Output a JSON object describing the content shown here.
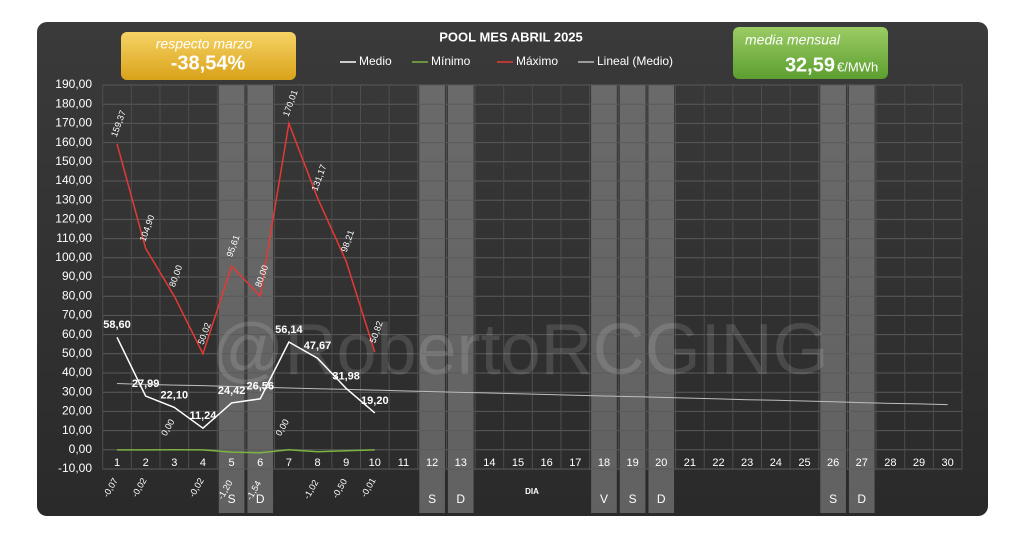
{
  "chart_data": {
    "type": "line",
    "title": "POOL  MES ABRIL 2025",
    "x_label": "DIA",
    "watermark": "@RobertoRCGING",
    "boxes": [
      {
        "title": "respecto marzo",
        "value": "-38,54%"
      },
      {
        "title": "media mensual",
        "value": "32,59",
        "unit": "€/MWh"
      }
    ],
    "categories": [
      "1",
      "2",
      "3",
      "4",
      "5",
      "6",
      "7",
      "8",
      "9",
      "10",
      "11",
      "12",
      "13",
      "14",
      "15",
      "16",
      "17",
      "18",
      "19",
      "20",
      "21",
      "22",
      "23",
      "24",
      "25",
      "26",
      "27",
      "28",
      "29",
      "30"
    ],
    "shaded_days": [
      {
        "category": "5",
        "label": "S"
      },
      {
        "category": "6",
        "label": "D"
      },
      {
        "category": "12",
        "label": "S"
      },
      {
        "category": "13",
        "label": "D"
      },
      {
        "category": "18",
        "label": "V"
      },
      {
        "category": "19",
        "label": "S"
      },
      {
        "category": "20",
        "label": "D"
      },
      {
        "category": "26",
        "label": "S"
      },
      {
        "category": "27",
        "label": "D"
      }
    ],
    "series": [
      {
        "name": "Medio",
        "color": "#ffffff",
        "values": [
          58.6,
          27.99,
          22.1,
          11.24,
          24.42,
          26.56,
          56.14,
          47.67,
          31.98,
          19.2,
          null,
          null,
          null,
          null,
          null,
          null,
          null,
          null,
          null,
          null,
          null,
          null,
          null,
          null,
          null,
          null,
          null,
          null,
          null,
          null
        ],
        "value_labels": [
          "58,60",
          "27,99",
          "22,10",
          "11,24",
          "24,42",
          "26,56",
          "56,14",
          "47,67",
          "31,98",
          "19,20",
          null,
          null,
          null,
          null,
          null,
          null,
          null,
          null,
          null,
          null,
          null,
          null,
          null,
          null,
          null,
          null,
          null,
          null,
          null,
          null
        ]
      },
      {
        "name": "Mínimo",
        "color": "#7cb342",
        "values": [
          -0.07,
          -0.02,
          0.0,
          -0.02,
          -1.2,
          -1.54,
          0.0,
          -1.02,
          -0.5,
          -0.01,
          null,
          null,
          null,
          null,
          null,
          null,
          null,
          null,
          null,
          null,
          null,
          null,
          null,
          null,
          null,
          null,
          null,
          null,
          null,
          null
        ],
        "value_labels": [
          "-0,07",
          "-0,02",
          "0,00",
          "-0,02",
          "-1,20",
          "-1,54",
          "0,00",
          "-1,02",
          "-0,50",
          "-0,01",
          null,
          null,
          null,
          null,
          null,
          null,
          null,
          null,
          null,
          null,
          null,
          null,
          null,
          null,
          null,
          null,
          null,
          null,
          null,
          null
        ]
      },
      {
        "name": "Máximo",
        "color": "#e53935",
        "values": [
          159.37,
          104.9,
          80.0,
          50.02,
          95.61,
          80.0,
          170.01,
          131.17,
          98.21,
          50.82,
          null,
          null,
          null,
          null,
          null,
          null,
          null,
          null,
          null,
          null,
          null,
          null,
          null,
          null,
          null,
          null,
          null,
          null,
          null,
          null
        ],
        "value_labels": [
          "159,37",
          "104,90",
          "80,00",
          "50,02",
          "95,61",
          "80,00",
          "170,01",
          "131,17",
          "98,21",
          "50,82",
          null,
          null,
          null,
          null,
          null,
          null,
          null,
          null,
          null,
          null,
          null,
          null,
          null,
          null,
          null,
          null,
          null,
          null,
          null,
          null
        ]
      },
      {
        "name": "Lineal (Medio)",
        "color": "#bdbdbd",
        "values": [
          34.5,
          34.1,
          33.7,
          33.4,
          33.0,
          32.6,
          32.2,
          31.8,
          31.5,
          31.1,
          30.7,
          30.3,
          29.9,
          29.6,
          29.2,
          28.8,
          28.4,
          28.0,
          27.7,
          27.3,
          26.9,
          26.5,
          26.1,
          25.8,
          25.4,
          25.0,
          24.6,
          24.2,
          23.9,
          23.5
        ]
      }
    ],
    "ylim": [
      -10,
      190
    ],
    "yticks": [
      {
        "value": -10,
        "label": "-10,00"
      },
      {
        "value": 0,
        "label": "0,00"
      },
      {
        "value": 10,
        "label": "10,00"
      },
      {
        "value": 20,
        "label": "20,00"
      },
      {
        "value": 30,
        "label": "30,00"
      },
      {
        "value": 40,
        "label": "40,00"
      },
      {
        "value": 50,
        "label": "50,00"
      },
      {
        "value": 60,
        "label": "60,00"
      },
      {
        "value": 70,
        "label": "70,00"
      },
      {
        "value": 80,
        "label": "80,00"
      },
      {
        "value": 90,
        "label": "90,00"
      },
      {
        "value": 100,
        "label": "100,00"
      },
      {
        "value": 110,
        "label": "110,00"
      },
      {
        "value": 120,
        "label": "120,00"
      },
      {
        "value": 130,
        "label": "130,00"
      },
      {
        "value": 140,
        "label": "140,00"
      },
      {
        "value": 150,
        "label": "150,00"
      },
      {
        "value": 160,
        "label": "160,00"
      },
      {
        "value": 170,
        "label": "170,00"
      },
      {
        "value": 180,
        "label": "180,00"
      },
      {
        "value": 190,
        "label": "190,00"
      }
    ],
    "grid": true
  }
}
